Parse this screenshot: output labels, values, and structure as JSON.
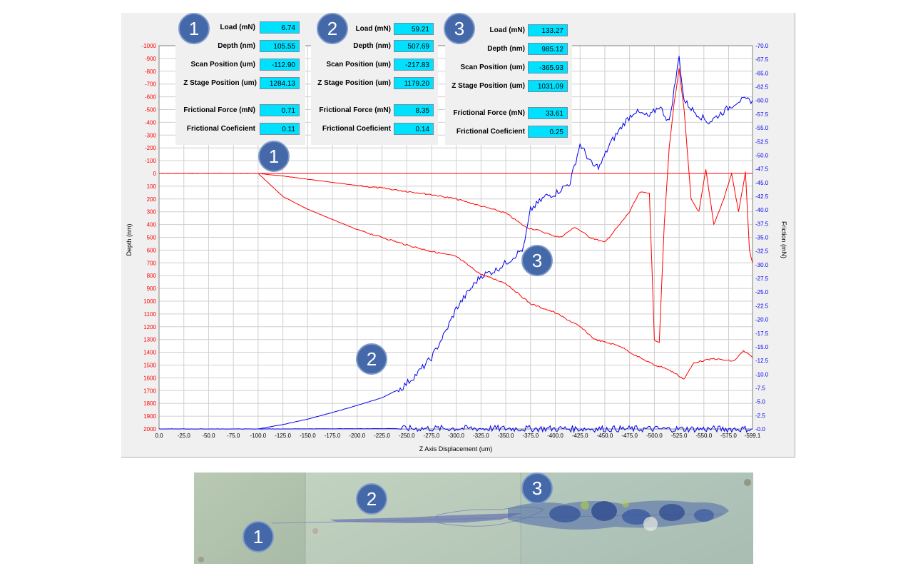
{
  "panels": [
    {
      "marker": "1",
      "load": "6.74",
      "depth": "105.55",
      "scan_position": "-112.90",
      "z_stage_position": "1284.13",
      "frictional_force": "0.71",
      "frictional_coefficient": "0.11"
    },
    {
      "marker": "2",
      "load": "59.21",
      "depth": "507.69",
      "scan_position": "-217.83",
      "z_stage_position": "1179.20",
      "frictional_force": "8.35",
      "frictional_coefficient": "0.14"
    },
    {
      "marker": "3",
      "load": "133.27",
      "depth": "985.12",
      "scan_position": "-365.93",
      "z_stage_position": "1031.09",
      "frictional_force": "33.61",
      "frictional_coefficient": "0.25"
    }
  ],
  "labels": {
    "load": "Load (mN)",
    "depth": "Depth (nm)",
    "scan_position": "Scan Position (um)",
    "z_stage_position": "Z Stage Position (um)",
    "frictional_force": "Frictional Force (mN)",
    "frictional_coefficient": "Frictional Coeficient"
  },
  "chart_markers": [
    "1",
    "2",
    "3"
  ],
  "image_markers": [
    "1",
    "2",
    "3"
  ],
  "colors": {
    "depth": "#ff0000",
    "friction": "#0000ee",
    "badge": "#4468a8",
    "value_box": "#00e1ff"
  },
  "chart_data": {
    "type": "line",
    "xlabel": "Z Axis Displacement (um)",
    "ylabel_left": "Depth (nm)",
    "ylabel_right": "Friction (mN)",
    "xlim": [
      0,
      -599.1
    ],
    "ylim_left": [
      -1000,
      2000
    ],
    "ylim_right": [
      70,
      0
    ],
    "grid": true,
    "x_ticks": [
      "0.0",
      "-25.0",
      "-50.0",
      "-75.0",
      "-100.0",
      "-125.0",
      "-150.0",
      "-175.0",
      "-200.0",
      "-225.0",
      "-250.0",
      "-275.0",
      "-300.0",
      "-325.0",
      "-350.0",
      "-375.0",
      "-400.0",
      "-425.0",
      "-450.0",
      "-475.0",
      "-500.0",
      "-525.0",
      "-550.0",
      "-575.0",
      "-599.1"
    ],
    "y_left_ticks": [
      "-1000",
      "-900",
      "-800",
      "-700",
      "-600",
      "-500",
      "-400",
      "-300",
      "-200",
      "-100",
      "0",
      "100",
      "200",
      "300",
      "400",
      "500",
      "600",
      "700",
      "800",
      "900",
      "1000",
      "1100",
      "1200",
      "1300",
      "1400",
      "1500",
      "1600",
      "1700",
      "1800",
      "1900",
      "2000"
    ],
    "y_right_ticks": [
      "-70.0",
      "-67.5",
      "-65.0",
      "-62.5",
      "-60.0",
      "-57.5",
      "-55.0",
      "-52.5",
      "-50.0",
      "-47.5",
      "-45.0",
      "-42.5",
      "-40.0",
      "-37.5",
      "-35.0",
      "-32.5",
      "-30.0",
      "-27.5",
      "-25.0",
      "-22.5",
      "-20.0",
      "-17.5",
      "-15.0",
      "-12.5",
      "-10.0",
      "-7.5",
      "-5.0",
      "-2.5",
      "-0.0"
    ],
    "series": [
      {
        "axis": "left",
        "color": "#ff0000",
        "points": [
          [
            0,
            0
          ],
          [
            -100,
            0
          ],
          [
            -125,
            20
          ],
          [
            -150,
            45
          ],
          [
            -175,
            70
          ],
          [
            -200,
            95
          ],
          [
            -225,
            115
          ],
          [
            -250,
            140
          ],
          [
            -275,
            165
          ],
          [
            -300,
            200
          ],
          [
            -325,
            255
          ],
          [
            -350,
            310
          ],
          [
            -370,
            420
          ],
          [
            -385,
            450
          ],
          [
            -395,
            480
          ],
          [
            -405,
            500
          ],
          [
            -420,
            420
          ],
          [
            -435,
            500
          ],
          [
            -450,
            540
          ],
          [
            -465,
            400
          ],
          [
            -475,
            300
          ],
          [
            -485,
            150
          ],
          [
            -495,
            150
          ],
          [
            -500,
            1300
          ],
          [
            -505,
            1320
          ],
          [
            -510,
            400
          ],
          [
            -515,
            -200
          ],
          [
            -520,
            -550
          ],
          [
            -525,
            -820
          ],
          [
            -530,
            -500
          ],
          [
            -537,
            200
          ],
          [
            -545,
            300
          ],
          [
            -552,
            -30
          ],
          [
            -560,
            400
          ],
          [
            -570,
            200
          ],
          [
            -578,
            0
          ],
          [
            -585,
            300
          ],
          [
            -592,
            -10
          ],
          [
            -596,
            600
          ],
          [
            -599.1,
            700
          ]
        ]
      },
      {
        "axis": "left",
        "color": "#ff0000",
        "points": [
          [
            -100,
            0
          ],
          [
            -125,
            180
          ],
          [
            -150,
            280
          ],
          [
            -175,
            360
          ],
          [
            -200,
            440
          ],
          [
            -225,
            500
          ],
          [
            -250,
            560
          ],
          [
            -275,
            610
          ],
          [
            -300,
            650
          ],
          [
            -325,
            790
          ],
          [
            -350,
            860
          ],
          [
            -375,
            1020
          ],
          [
            -400,
            1090
          ],
          [
            -425,
            1200
          ],
          [
            -440,
            1300
          ],
          [
            -465,
            1350
          ],
          [
            -480,
            1420
          ],
          [
            -500,
            1500
          ],
          [
            -510,
            1520
          ],
          [
            -520,
            1560
          ],
          [
            -530,
            1610
          ],
          [
            -540,
            1480
          ],
          [
            -560,
            1450
          ],
          [
            -580,
            1470
          ],
          [
            -590,
            1390
          ],
          [
            -599.1,
            1440
          ]
        ]
      },
      {
        "axis": "right",
        "color": "#0000ee",
        "points": [
          [
            0,
            0
          ],
          [
            -100,
            0
          ],
          [
            -125,
            0.8
          ],
          [
            -150,
            1.8
          ],
          [
            -175,
            3
          ],
          [
            -200,
            4.3
          ],
          [
            -225,
            5.7
          ],
          [
            -245,
            7.5
          ],
          [
            -260,
            10
          ],
          [
            -275,
            13
          ],
          [
            -290,
            18
          ],
          [
            -300,
            22
          ],
          [
            -312,
            25
          ],
          [
            -325,
            28
          ],
          [
            -340,
            29
          ],
          [
            -355,
            31
          ],
          [
            -368,
            33
          ],
          [
            -375,
            40
          ],
          [
            -390,
            42.5
          ],
          [
            -400,
            43
          ],
          [
            -415,
            45
          ],
          [
            -425,
            52
          ],
          [
            -438,
            48
          ],
          [
            -445,
            48
          ],
          [
            -455,
            52
          ],
          [
            -470,
            56
          ],
          [
            -480,
            58
          ],
          [
            -495,
            57
          ],
          [
            -505,
            59
          ],
          [
            -515,
            56
          ],
          [
            -520,
            62
          ],
          [
            -525,
            68
          ],
          [
            -530,
            60
          ],
          [
            -540,
            58
          ],
          [
            -555,
            56
          ],
          [
            -570,
            58
          ],
          [
            -585,
            60
          ],
          [
            -599.1,
            60
          ]
        ]
      },
      {
        "axis": "right",
        "color": "#0000ee",
        "points": [
          [
            -100,
            0
          ],
          [
            -300,
            0.1
          ],
          [
            -500,
            0
          ],
          [
            -599.1,
            0
          ]
        ]
      }
    ]
  }
}
